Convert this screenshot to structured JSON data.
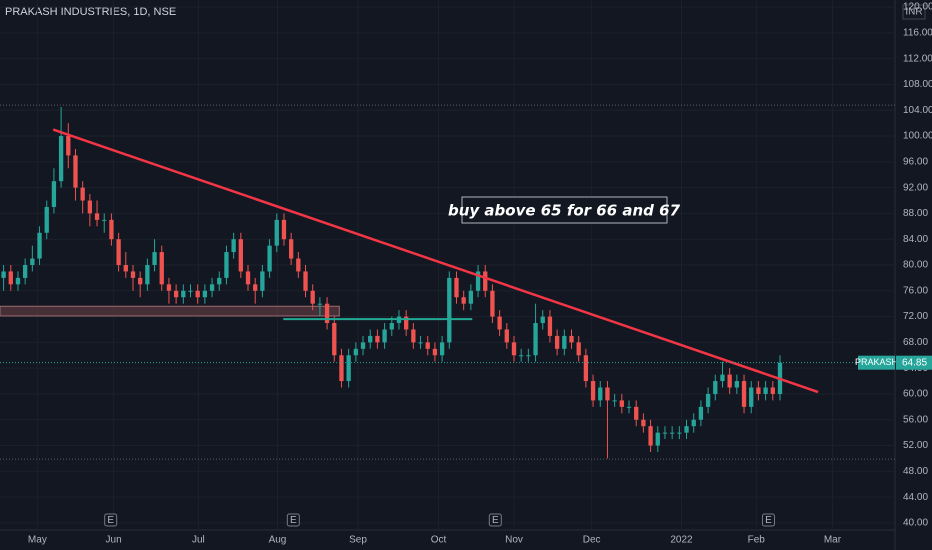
{
  "chart_data": {
    "type": "candlestick",
    "title": "PRAKASH INDUSTRIES, 1D, NSE",
    "currency": "INR",
    "annotation": "buy above 65 for 66 and 67",
    "up_color": "#26a69a",
    "down_color": "#ef5350",
    "xlim": [
      0,
      124.5
    ],
    "ylim": [
      38.9,
      121.1
    ],
    "xticks": [
      {
        "value": 5.2,
        "label": "May"
      },
      {
        "value": 15.8,
        "label": "Jun"
      },
      {
        "value": 27.6,
        "label": "Jul"
      },
      {
        "value": 38.6,
        "label": "Aug"
      },
      {
        "value": 49.8,
        "label": "Sep"
      },
      {
        "value": 61,
        "label": "Oct"
      },
      {
        "value": 71.5,
        "label": "Nov"
      },
      {
        "value": 82.3,
        "label": "Dec"
      },
      {
        "value": 94.8,
        "label": "2022"
      },
      {
        "value": 105.2,
        "label": "Feb"
      },
      {
        "value": 115.8,
        "label": "Mar"
      }
    ],
    "yticks": [
      {
        "value": 40,
        "label": "40.00"
      },
      {
        "value": 44,
        "label": "44.00"
      },
      {
        "value": 48,
        "label": "48.00"
      },
      {
        "value": 52,
        "label": "52.00"
      },
      {
        "value": 56,
        "label": "56.00"
      },
      {
        "value": 60,
        "label": "60.00"
      },
      {
        "value": 64,
        "label": "64.00"
      },
      {
        "value": 68,
        "label": "68.00"
      },
      {
        "value": 72,
        "label": "72.00"
      },
      {
        "value": 76,
        "label": "76.00"
      },
      {
        "value": 80,
        "label": "80.00"
      },
      {
        "value": 84,
        "label": "84.00"
      },
      {
        "value": 88,
        "label": "88.00"
      },
      {
        "value": 92,
        "label": "92.00"
      },
      {
        "value": 96,
        "label": "96.00"
      },
      {
        "value": 100,
        "label": "100.00"
      },
      {
        "value": 104,
        "label": "104.00"
      },
      {
        "value": 108,
        "label": "108.00"
      },
      {
        "value": 112,
        "label": "112.00"
      },
      {
        "value": 116,
        "label": "116.00"
      },
      {
        "value": 120,
        "label": "120.00"
      }
    ],
    "candles": [
      [
        78,
        80,
        76,
        79
      ],
      [
        79,
        80,
        76,
        77
      ],
      [
        77,
        79,
        76,
        78
      ],
      [
        78,
        81,
        77,
        80
      ],
      [
        80,
        83,
        79,
        81
      ],
      [
        81,
        86,
        80,
        85
      ],
      [
        85,
        90,
        84,
        89
      ],
      [
        89,
        95,
        88,
        93
      ],
      [
        93,
        104.5,
        92,
        100
      ],
      [
        100,
        102,
        95,
        97
      ],
      [
        97,
        98,
        90,
        92
      ],
      [
        92,
        93,
        88,
        90
      ],
      [
        90,
        91,
        86,
        88
      ],
      [
        88,
        90,
        86,
        87
      ],
      [
        87,
        88,
        85,
        87
      ],
      [
        87,
        88,
        83,
        84
      ],
      [
        84,
        85,
        79,
        80
      ],
      [
        80,
        82,
        78,
        79
      ],
      [
        79,
        80,
        76,
        78
      ],
      [
        78,
        79,
        75,
        77
      ],
      [
        77,
        81,
        76,
        80
      ],
      [
        80,
        84,
        79,
        82
      ],
      [
        82,
        83,
        76,
        77
      ],
      [
        77,
        78,
        74,
        76
      ],
      [
        76,
        77,
        74,
        75
      ],
      [
        75,
        77,
        74,
        76
      ],
      [
        76,
        77,
        75,
        76
      ],
      [
        76,
        77,
        74,
        75
      ],
      [
        75,
        77,
        74,
        76
      ],
      [
        76,
        78,
        75,
        77
      ],
      [
        77,
        79,
        76,
        78
      ],
      [
        78,
        83,
        77,
        82
      ],
      [
        82,
        85,
        81,
        84
      ],
      [
        84,
        85,
        78,
        79
      ],
      [
        79,
        80,
        76,
        77
      ],
      [
        77,
        78,
        74,
        76
      ],
      [
        76,
        80,
        75,
        79
      ],
      [
        79,
        84,
        78,
        83
      ],
      [
        83,
        88,
        82,
        87
      ],
      [
        87,
        88,
        83,
        84
      ],
      [
        84,
        85,
        80,
        81
      ],
      [
        81,
        82,
        78,
        79
      ],
      [
        79,
        80,
        75,
        76
      ],
      [
        76,
        77,
        73,
        74
      ],
      [
        74,
        75,
        72,
        74
      ],
      [
        74,
        75,
        70,
        71
      ],
      [
        71,
        72,
        65,
        66
      ],
      [
        66,
        67,
        61,
        62
      ],
      [
        62,
        67,
        61,
        66
      ],
      [
        66,
        68,
        65,
        67
      ],
      [
        67,
        69,
        66,
        68
      ],
      [
        68,
        70,
        67,
        69
      ],
      [
        69,
        70,
        67,
        68
      ],
      [
        68,
        71,
        67,
        70
      ],
      [
        70,
        72,
        69,
        71
      ],
      [
        71,
        73,
        70,
        72
      ],
      [
        72,
        73,
        69,
        70
      ],
      [
        70,
        71,
        67,
        68
      ],
      [
        68,
        69,
        67,
        68
      ],
      [
        68,
        69,
        66,
        67
      ],
      [
        67,
        68,
        65,
        66
      ],
      [
        66,
        69,
        65,
        68
      ],
      [
        68,
        79,
        67,
        78
      ],
      [
        78,
        79,
        74,
        75
      ],
      [
        75,
        76,
        73,
        74
      ],
      [
        74,
        77,
        73,
        76
      ],
      [
        76,
        80,
        75,
        79
      ],
      [
        79,
        80,
        75,
        76
      ],
      [
        76,
        77,
        71,
        72
      ],
      [
        72,
        73,
        69,
        70
      ],
      [
        70,
        71,
        67,
        68
      ],
      [
        68,
        69,
        65,
        66
      ],
      [
        66,
        67,
        65,
        66
      ],
      [
        66,
        67,
        65,
        66
      ],
      [
        66,
        74,
        65,
        71
      ],
      [
        71,
        73,
        70,
        72
      ],
      [
        72,
        73,
        68,
        69
      ],
      [
        69,
        70,
        66,
        67
      ],
      [
        67,
        70,
        66,
        69
      ],
      [
        69,
        70,
        67,
        68
      ],
      [
        68,
        69,
        65,
        66
      ],
      [
        66,
        67,
        61,
        62
      ],
      [
        62,
        63,
        58,
        59
      ],
      [
        59,
        62,
        58,
        61
      ],
      [
        61,
        62,
        50,
        59
      ],
      [
        59,
        60,
        58,
        59
      ],
      [
        59,
        60,
        57,
        58
      ],
      [
        58,
        59,
        57,
        58
      ],
      [
        58,
        59,
        55,
        56
      ],
      [
        56,
        57,
        54,
        55
      ],
      [
        55,
        56,
        51,
        52
      ],
      [
        52,
        55,
        51,
        54
      ],
      [
        54,
        55,
        53,
        54
      ],
      [
        54,
        55,
        53,
        54
      ],
      [
        54,
        55,
        53,
        54
      ],
      [
        54,
        56,
        53,
        55
      ],
      [
        55,
        57,
        54,
        56
      ],
      [
        56,
        59,
        55,
        58
      ],
      [
        58,
        61,
        57,
        60
      ],
      [
        60,
        63,
        59,
        62
      ],
      [
        62,
        65,
        61,
        63
      ],
      [
        63,
        64,
        60,
        61
      ],
      [
        61,
        63,
        60,
        62
      ],
      [
        62,
        63,
        57,
        58
      ],
      [
        58,
        62,
        57,
        61
      ],
      [
        61,
        62,
        59,
        60
      ],
      [
        60,
        62,
        59,
        61
      ],
      [
        61,
        62,
        59,
        60
      ],
      [
        60,
        66,
        59,
        64.85
      ]
    ],
    "trendline": {
      "color": "#f23645",
      "points": [
        [
          7.4,
          101
        ],
        [
          113.8,
          60.3
        ]
      ]
    },
    "zone": {
      "color": "#5d3a3e",
      "x": [
        0,
        47.2
      ],
      "y": [
        72.1,
        73.6
      ]
    },
    "support_line": {
      "color": "#22ab94",
      "x": [
        39.4,
        65.7
      ],
      "y": 71.6
    },
    "levels": [
      104.8,
      49.9
    ],
    "events": [
      {
        "x": 15.4,
        "label": "E"
      },
      {
        "x": 40.8,
        "label": "E"
      },
      {
        "x": 68.9,
        "label": "E"
      },
      {
        "x": 106.9,
        "label": "E"
      }
    ],
    "last_price": {
      "name": "PRAKASH",
      "value": 64.85
    }
  }
}
